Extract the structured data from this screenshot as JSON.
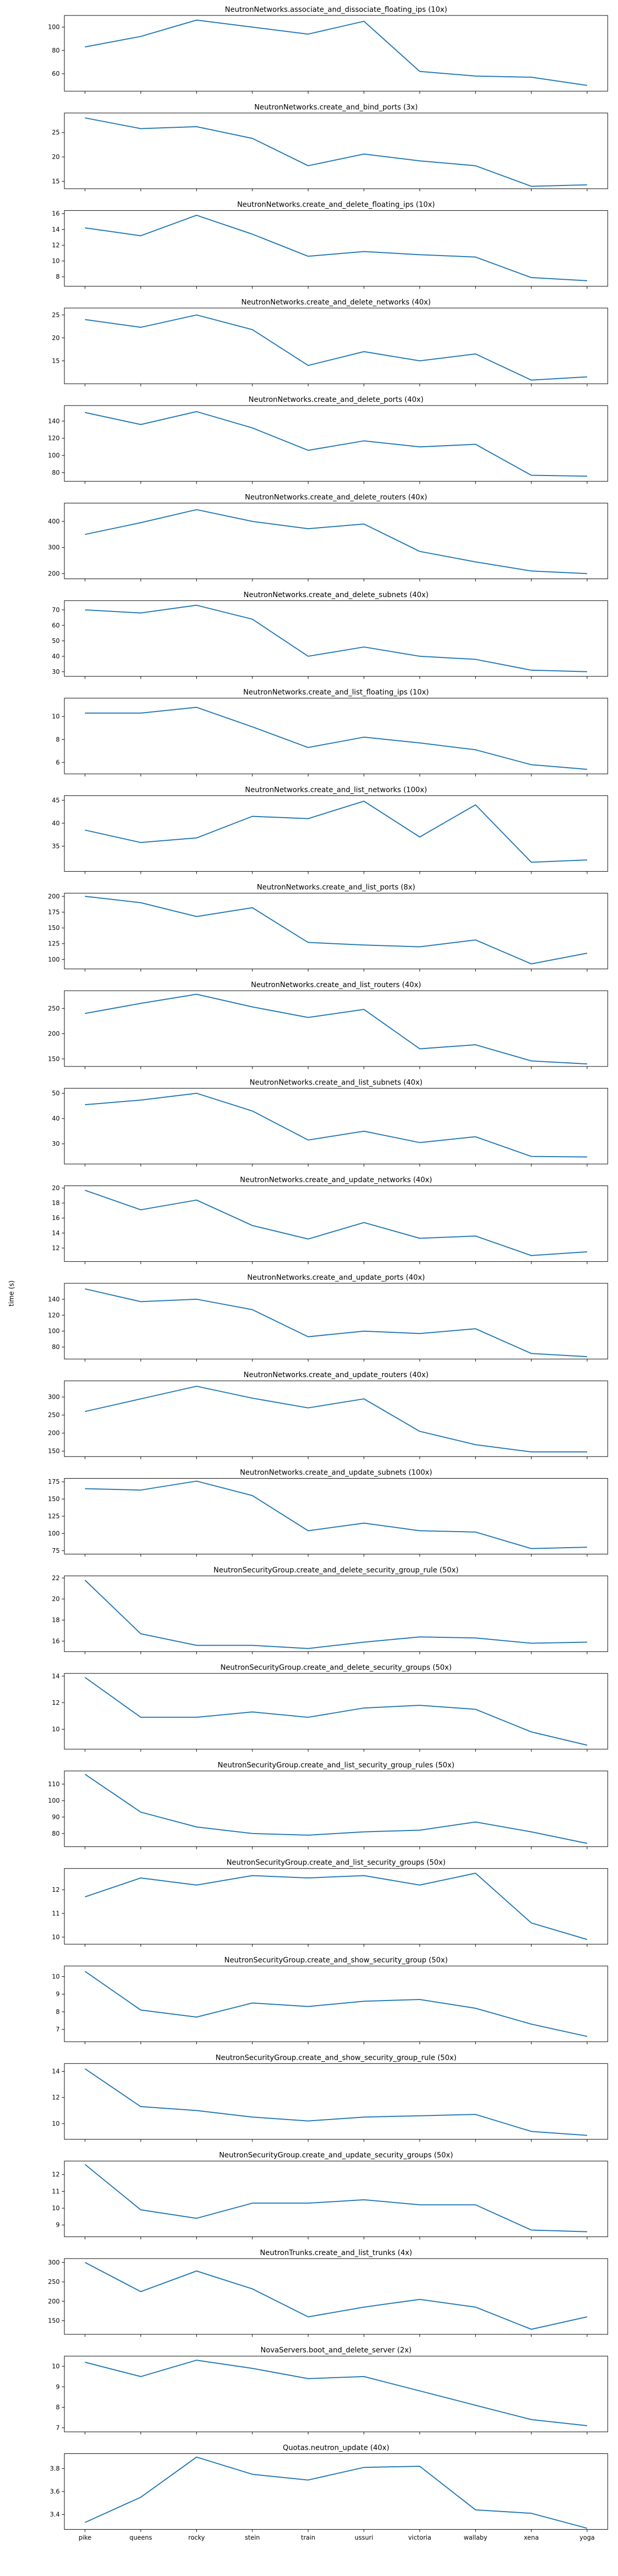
{
  "chart_data": {
    "type": "line",
    "ylabel": "time (s)",
    "x": [
      "pike",
      "queens",
      "rocky",
      "stein",
      "train",
      "ussuri",
      "victoria",
      "wallaby",
      "xena",
      "yoga"
    ],
    "line_color": "#1f77b4",
    "panels": [
      {
        "title": "NeutronNetworks.associate_and_dissociate_floating_ips (10x)",
        "ylim": [
          45,
          110
        ],
        "yticks": [
          60,
          80,
          100
        ],
        "values": [
          83,
          92,
          106,
          100,
          94,
          105,
          62,
          58,
          57,
          50
        ]
      },
      {
        "title": "NeutronNetworks.create_and_bind_ports (3x)",
        "ylim": [
          13.5,
          29
        ],
        "yticks": [
          15,
          20,
          25
        ],
        "values": [
          28,
          25.8,
          26.2,
          23.8,
          18.2,
          20.6,
          19.2,
          18.2,
          14,
          14.3
        ]
      },
      {
        "title": "NeutronNetworks.create_and_delete_floating_ips (10x)",
        "ylim": [
          6.8,
          16.4
        ],
        "yticks": [
          8,
          10,
          12,
          14,
          16
        ],
        "values": [
          14.2,
          13.2,
          15.8,
          13.4,
          10.6,
          11.2,
          10.8,
          10.5,
          7.9,
          7.5
        ]
      },
      {
        "title": "NeutronNetworks.create_and_delete_networks (40x)",
        "ylim": [
          10,
          26.5
        ],
        "yticks": [
          15,
          20,
          25
        ],
        "values": [
          24,
          22.3,
          25,
          21.8,
          14,
          17,
          15,
          16.5,
          10.8,
          11.5
        ]
      },
      {
        "title": "NeutronNetworks.create_and_delete_ports (40x)",
        "ylim": [
          70,
          158
        ],
        "yticks": [
          80,
          100,
          120,
          140
        ],
        "values": [
          150,
          136,
          151,
          132,
          106,
          117,
          110,
          113,
          77,
          76
        ]
      },
      {
        "title": "NeutronNetworks.create_and_delete_routers (40x)",
        "ylim": [
          180,
          470
        ],
        "yticks": [
          200,
          300,
          400
        ],
        "values": [
          350,
          395,
          445,
          400,
          372,
          390,
          285,
          245,
          210,
          200
        ]
      },
      {
        "title": "NeutronNetworks.create_and_delete_subnets (40x)",
        "ylim": [
          27,
          76
        ],
        "yticks": [
          30,
          40,
          50,
          60,
          70
        ],
        "values": [
          70,
          68,
          73,
          64,
          40,
          46,
          40,
          38,
          31,
          30
        ]
      },
      {
        "title": "NeutronNetworks.create_and_list_floating_ips (10x)",
        "ylim": [
          5,
          11.6
        ],
        "yticks": [
          6,
          8,
          10
        ],
        "values": [
          10.3,
          10.3,
          10.8,
          9.1,
          7.3,
          8.2,
          7.7,
          7.1,
          5.8,
          5.4
        ]
      },
      {
        "title": "NeutronNetworks.create_and_list_networks (100x)",
        "ylim": [
          29.5,
          46
        ],
        "yticks": [
          35,
          40,
          45
        ],
        "values": [
          38.5,
          35.8,
          36.8,
          41.5,
          41,
          44.8,
          37,
          44,
          31.5,
          32
        ]
      },
      {
        "title": "NeutronNetworks.create_and_list_ports (8x)",
        "ylim": [
          85,
          205
        ],
        "yticks": [
          100,
          125,
          150,
          175,
          200
        ],
        "values": [
          200,
          190,
          168,
          182,
          127,
          123,
          120,
          131,
          93,
          110
        ]
      },
      {
        "title": "NeutronNetworks.create_and_list_routers (40x)",
        "ylim": [
          135,
          285
        ],
        "yticks": [
          150,
          200,
          250
        ],
        "values": [
          240,
          260,
          278,
          253,
          232,
          248,
          170,
          178,
          146,
          140
        ]
      },
      {
        "title": "NeutronNetworks.create_and_list_subnets (40x)",
        "ylim": [
          22,
          52
        ],
        "yticks": [
          30,
          40,
          50
        ],
        "values": [
          45.5,
          47.3,
          50,
          43,
          31.5,
          35,
          30.5,
          32.8,
          25,
          24.8
        ]
      },
      {
        "title": "NeutronNetworks.create_and_update_networks (40x)",
        "ylim": [
          10.2,
          20.3
        ],
        "yticks": [
          12,
          14,
          16,
          18,
          20
        ],
        "values": [
          19.7,
          17.1,
          18.4,
          15,
          13.2,
          15.4,
          13.3,
          13.6,
          11,
          11.5
        ]
      },
      {
        "title": "NeutronNetworks.create_and_update_ports (40x)",
        "ylim": [
          65,
          160
        ],
        "yticks": [
          80,
          100,
          120,
          140
        ],
        "values": [
          153,
          137,
          140,
          127,
          93,
          100,
          97,
          103,
          72,
          68
        ]
      },
      {
        "title": "NeutronNetworks.create_and_update_routers (40x)",
        "ylim": [
          135,
          345
        ],
        "yticks": [
          150,
          200,
          250,
          300
        ],
        "values": [
          260,
          295,
          330,
          297,
          270,
          295,
          205,
          168,
          148,
          148
        ]
      },
      {
        "title": "NeutronNetworks.create_and_update_subnets (100x)",
        "ylim": [
          70,
          180
        ],
        "yticks": [
          75,
          100,
          125,
          150,
          175
        ],
        "values": [
          165,
          163,
          176,
          155,
          104,
          115,
          104,
          102,
          78,
          80
        ]
      },
      {
        "title": "NeutronSecurityGroup.create_and_delete_security_group_rule (50x)",
        "ylim": [
          15,
          22.2
        ],
        "yticks": [
          16,
          18,
          20,
          22
        ],
        "values": [
          21.8,
          16.7,
          15.6,
          15.6,
          15.3,
          15.9,
          16.4,
          16.3,
          15.8,
          15.9
        ]
      },
      {
        "title": "NeutronSecurityGroup.create_and_delete_security_groups (50x)",
        "ylim": [
          8.5,
          14.2
        ],
        "yticks": [
          10,
          12,
          14
        ],
        "values": [
          13.9,
          10.9,
          10.9,
          11.3,
          10.9,
          11.6,
          11.8,
          11.5,
          9.8,
          8.8
        ]
      },
      {
        "title": "NeutronSecurityGroup.create_and_list_security_group_rules (50x)",
        "ylim": [
          72,
          118
        ],
        "yticks": [
          80,
          90,
          100,
          110
        ],
        "values": [
          116,
          93,
          84,
          80,
          79,
          81,
          82,
          87,
          81,
          74
        ]
      },
      {
        "title": "NeutronSecurityGroup.create_and_list_security_groups (50x)",
        "ylim": [
          9.7,
          12.9
        ],
        "yticks": [
          10,
          11,
          12
        ],
        "values": [
          11.7,
          12.5,
          12.2,
          12.6,
          12.5,
          12.6,
          12.2,
          12.7,
          10.6,
          9.9
        ]
      },
      {
        "title": "NeutronSecurityGroup.create_and_show_security_group (50x)",
        "ylim": [
          6.3,
          10.6
        ],
        "yticks": [
          7,
          8,
          9,
          10
        ],
        "values": [
          10.3,
          8.1,
          7.7,
          8.5,
          8.3,
          8.6,
          8.7,
          8.2,
          7.3,
          6.6
        ]
      },
      {
        "title": "NeutronSecurityGroup.create_and_show_security_group_rule (50x)",
        "ylim": [
          8.8,
          14.6
        ],
        "yticks": [
          10,
          12,
          14
        ],
        "values": [
          14.2,
          11.3,
          11,
          10.5,
          10.2,
          10.5,
          10.6,
          10.7,
          9.4,
          9.1
        ]
      },
      {
        "title": "NeutronSecurityGroup.create_and_update_security_groups (50x)",
        "ylim": [
          8.3,
          12.8
        ],
        "yticks": [
          9,
          10,
          11,
          12
        ],
        "values": [
          12.6,
          9.9,
          9.4,
          10.3,
          10.3,
          10.5,
          10.2,
          10.2,
          8.7,
          8.6
        ]
      },
      {
        "title": "NeutronTrunks.create_and_list_trunks (4x)",
        "ylim": [
          115,
          310
        ],
        "yticks": [
          150,
          200,
          250,
          300
        ],
        "values": [
          300,
          225,
          278,
          232,
          160,
          185,
          205,
          185,
          128,
          160
        ]
      },
      {
        "title": "NovaServers.boot_and_delete_server (2x)",
        "ylim": [
          6.8,
          10.5
        ],
        "yticks": [
          7,
          8,
          9,
          10
        ],
        "values": [
          10.2,
          9.5,
          10.3,
          9.9,
          9.4,
          9.5,
          8.8,
          8.1,
          7.4,
          7.1
        ]
      },
      {
        "title": "Quotas.neutron_update (40x)",
        "ylim": [
          3.27,
          3.93
        ],
        "yticks": [
          3.4,
          3.6,
          3.8
        ],
        "values": [
          3.33,
          3.55,
          3.9,
          3.75,
          3.7,
          3.81,
          3.82,
          3.44,
          3.41,
          3.28
        ]
      }
    ]
  }
}
